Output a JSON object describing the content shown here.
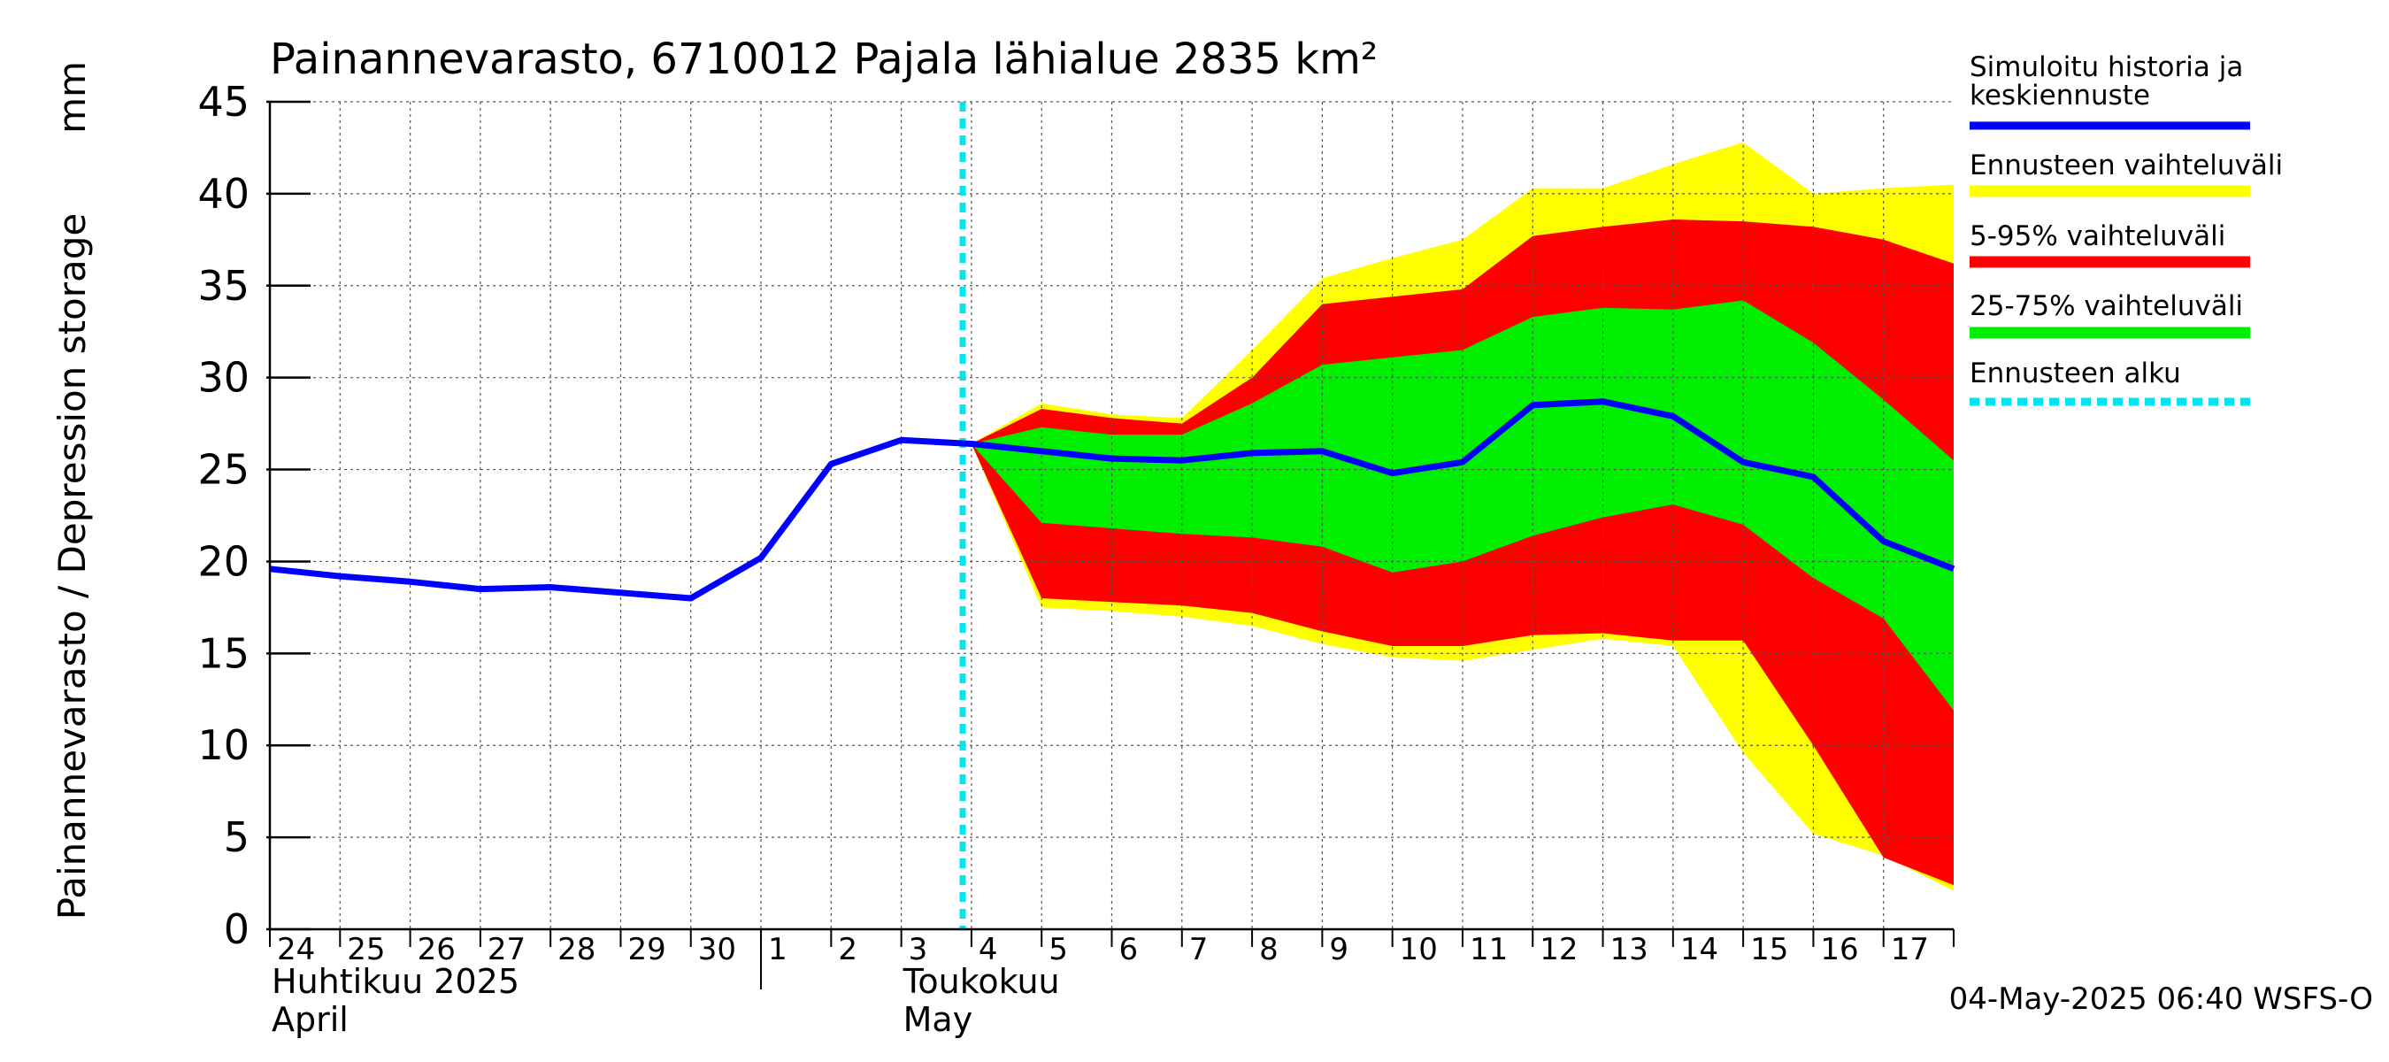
{
  "chart_data": {
    "type": "area",
    "title": "Painannevarasto, 6710012 Pajala lähialue 2835 km²",
    "ylabel": "Painannevarasto / Depression storage",
    "yunit": "mm",
    "ylim": [
      0,
      45
    ],
    "yticks": [
      "0",
      "5",
      "10",
      "15",
      "20",
      "25",
      "30",
      "35",
      "40",
      "45"
    ],
    "xlim": [
      "2025-04-24",
      "2025-05-18"
    ],
    "xticks": [
      "24",
      "25",
      "26",
      "27",
      "28",
      "29",
      "30",
      "1",
      "2",
      "3",
      "4",
      "5",
      "6",
      "7",
      "8",
      "9",
      "10",
      "11",
      "12",
      "13",
      "14",
      "15",
      "16",
      "17"
    ],
    "month_labels": [
      {
        "fi": "Huhtikuu  2025",
        "en": "April"
      },
      {
        "fi": "Toukokuu",
        "en": "May"
      }
    ],
    "grid": true,
    "legend_position": "right",
    "legend": [
      {
        "label": "Simuloitu historia ja keskiennuste",
        "color": "#0000ff"
      },
      {
        "label": "Ennusteen vaihteluväli",
        "color": "#ffff00"
      },
      {
        "label": "5-95% vaihteluväli",
        "color": "#ff0000"
      },
      {
        "label": "25-75% vaihteluväli",
        "color": "#00ee00"
      },
      {
        "label": "Ennusteen alku",
        "color": "#00e5ee"
      }
    ],
    "forecast_start": "2025-05-03T21:00",
    "history": {
      "x": [
        "2025-04-24",
        "2025-04-25",
        "2025-04-26",
        "2025-04-27",
        "2025-04-28",
        "2025-04-29",
        "2025-04-30",
        "2025-05-01",
        "2025-05-02",
        "2025-05-03",
        "2025-05-04"
      ],
      "y": [
        19.6,
        19.2,
        18.9,
        18.5,
        18.6,
        18.3,
        18.0,
        20.2,
        25.3,
        26.6,
        26.4
      ]
    },
    "forecast_x": [
      "2025-05-04",
      "2025-05-05",
      "2025-05-06",
      "2025-05-07",
      "2025-05-08",
      "2025-05-09",
      "2025-05-10",
      "2025-05-11",
      "2025-05-12",
      "2025-05-13",
      "2025-05-14",
      "2025-05-15",
      "2025-05-16",
      "2025-05-17",
      "2025-05-18"
    ],
    "series": [
      {
        "role": "yellow-band",
        "upper": [
          26.4,
          28.6,
          28.0,
          27.8,
          31.5,
          35.4,
          36.5,
          37.5,
          40.3,
          40.3,
          41.6,
          42.8,
          40.0,
          40.3,
          40.5
        ],
        "lower": [
          26.4,
          17.5,
          17.3,
          17.0,
          16.5,
          15.5,
          14.8,
          14.6,
          15.2,
          15.8,
          15.4,
          9.6,
          5.2,
          4.0,
          2.1
        ]
      },
      {
        "role": "red-band",
        "upper": [
          26.4,
          28.3,
          27.8,
          27.5,
          30.0,
          34.0,
          34.4,
          34.8,
          37.7,
          38.2,
          38.6,
          38.5,
          38.2,
          37.5,
          36.2
        ],
        "lower": [
          26.4,
          18.0,
          17.8,
          17.6,
          17.2,
          16.2,
          15.4,
          15.4,
          16.0,
          16.1,
          15.7,
          15.7,
          10.0,
          3.9,
          2.4
        ]
      },
      {
        "role": "green-band",
        "upper": [
          26.4,
          27.3,
          26.9,
          26.9,
          28.6,
          30.7,
          31.1,
          31.5,
          33.3,
          33.8,
          33.7,
          34.2,
          31.9,
          28.8,
          25.5
        ],
        "lower": [
          26.4,
          22.1,
          21.8,
          21.5,
          21.3,
          20.8,
          19.4,
          20.0,
          21.4,
          22.4,
          23.1,
          22.0,
          19.1,
          16.9,
          11.9
        ]
      },
      {
        "name": "Simuloitu historia ja keskiennuste",
        "role": "median",
        "values": [
          26.4,
          26.0,
          25.6,
          25.5,
          25.9,
          26.0,
          24.8,
          25.4,
          28.5,
          28.7,
          27.9,
          25.4,
          24.6,
          21.1,
          19.6
        ]
      }
    ]
  },
  "footer": {
    "timestamp": "04-May-2025 06:40 WSFS-O"
  }
}
